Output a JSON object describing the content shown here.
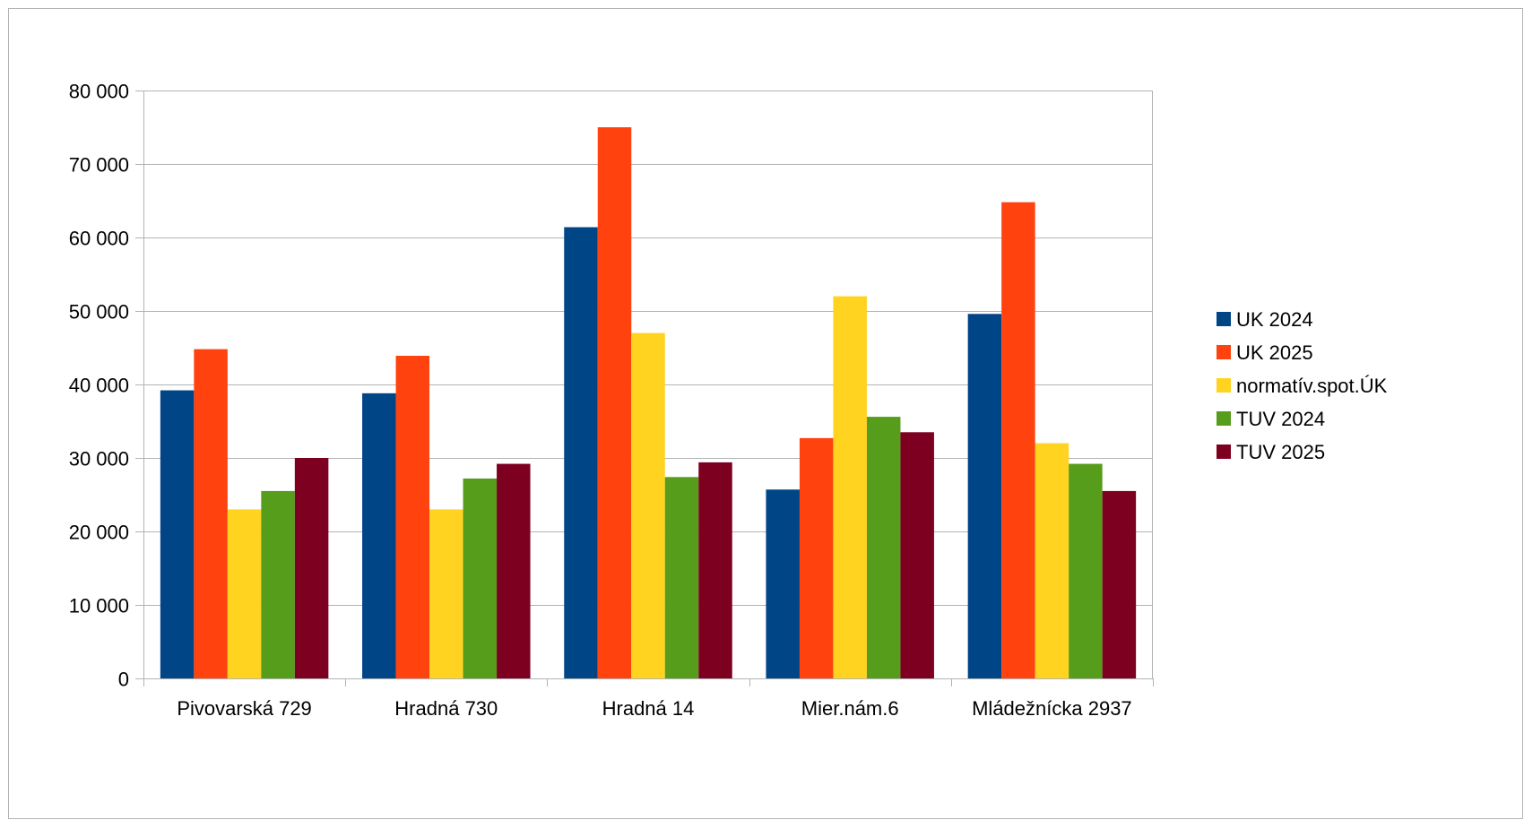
{
  "chart_data": {
    "type": "bar",
    "title": "",
    "xlabel": "",
    "ylabel": "",
    "categories": [
      "Pivovarská 729",
      "Hradná 730",
      "Hradná 14",
      "Mier.nám.6",
      "Mládežnícka 2937"
    ],
    "series": [
      {
        "name": "UK 2024",
        "color": "#004586",
        "values": [
          39200,
          38800,
          61400,
          25700,
          49600
        ]
      },
      {
        "name": "UK 2025",
        "color": "#ff420e",
        "values": [
          44800,
          43900,
          75000,
          32700,
          64800
        ]
      },
      {
        "name": "normatív.spot.ÚK",
        "color": "#ffd320",
        "values": [
          23000,
          23000,
          47000,
          52000,
          32000
        ]
      },
      {
        "name": "TUV 2024",
        "color": "#579d1c",
        "values": [
          25500,
          27200,
          27400,
          35600,
          29200
        ]
      },
      {
        "name": "TUV 2025",
        "color": "#7e0021",
        "values": [
          30000,
          29200,
          29400,
          33500,
          25500
        ]
      }
    ],
    "ylim": [
      0,
      80000
    ],
    "yticks": [
      0,
      10000,
      20000,
      30000,
      40000,
      50000,
      60000,
      70000,
      80000
    ],
    "ytick_labels": [
      "0",
      "10 000",
      "20 000",
      "30 000",
      "40 000",
      "50 000",
      "60 000",
      "70 000",
      "80 000"
    ],
    "grid": true,
    "legend_position": "right"
  }
}
